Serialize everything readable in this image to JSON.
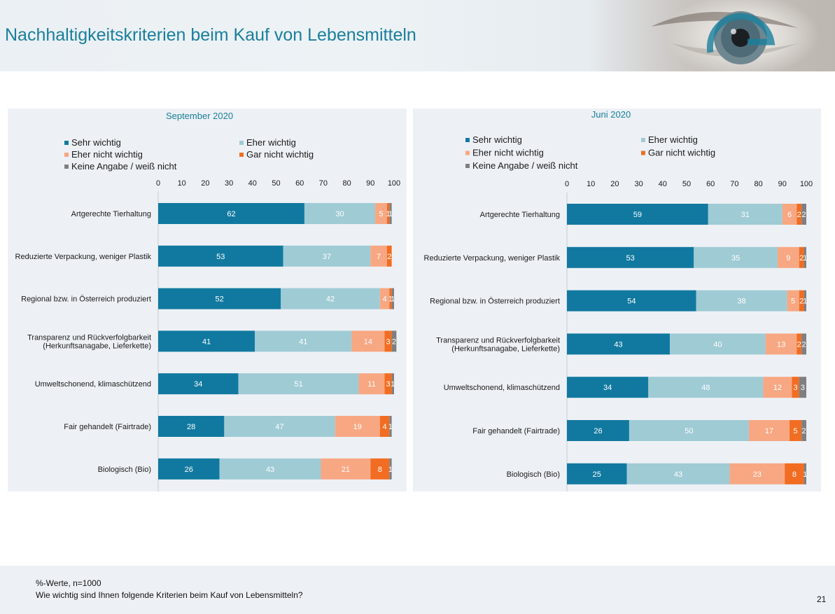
{
  "page": {
    "title": "Nachhaltigkeitskriterien beim Kauf von Lebensmitteln",
    "note_line1": "%-Werte, n=1000",
    "note_line2": "Wie wichtig sind Ihnen folgende Kriterien beim Kauf von Lebensmitteln?",
    "page_number": "21"
  },
  "colors": {
    "title": "#1a7f9c",
    "sehr_wichtig": "#1179a0",
    "eher_wichtig": "#9fcbd5",
    "eher_nicht_wichtig": "#f8a783",
    "gar_nicht_wichtig": "#f26d21",
    "keine_angabe": "#7f7f7f",
    "panel_bg": "#edf1f5"
  },
  "chart_data": [
    {
      "type": "bar",
      "orientation": "horizontal",
      "stacked": true,
      "title": "September 2020",
      "xlim": [
        0,
        100
      ],
      "xticks": [
        0,
        10,
        20,
        30,
        40,
        50,
        60,
        70,
        80,
        90,
        100
      ],
      "legend_position": "top",
      "categories": [
        "Artgerechte Tierhaltung",
        "Reduzierte Verpackung, weniger Plastik",
        "Regional bzw. in Österreich produziert",
        "Transparenz und Rückverfolgbarkeit\n(Herkunftsanagabe, Lieferkette)",
        "Umweltschonend, klimaschützend",
        "Fair gehandelt (Fairtrade)",
        "Biologisch (Bio)"
      ],
      "series": [
        {
          "name": "Sehr wichtig",
          "values": [
            62,
            53,
            52,
            41,
            34,
            28,
            26
          ]
        },
        {
          "name": "Eher wichtig",
          "values": [
            30,
            37,
            42,
            41,
            51,
            47,
            43
          ]
        },
        {
          "name": "Eher nicht wichtig",
          "values": [
            5,
            7,
            4,
            14,
            11,
            19,
            21
          ]
        },
        {
          "name": "Gar nicht wichtig",
          "values": [
            1,
            2,
            1,
            3,
            3,
            4,
            8
          ]
        },
        {
          "name": "Keine Angabe / weiß nicht",
          "values": [
            1,
            0,
            1,
            2,
            1,
            1,
            1
          ]
        }
      ]
    },
    {
      "type": "bar",
      "orientation": "horizontal",
      "stacked": true,
      "title": "Juni 2020",
      "xlim": [
        0,
        100
      ],
      "xticks": [
        0,
        10,
        20,
        30,
        40,
        50,
        60,
        70,
        80,
        90,
        100
      ],
      "legend_position": "top",
      "categories": [
        "Artgerechte Tierhaltung",
        "Reduzierte Verpackung, weniger Plastik",
        "Regional bzw. in Österreich produziert",
        "Transparenz und Rückverfolgbarkeit\n(Herkunftsanagabe, Lieferkette)",
        "Umweltschonend, klimaschützend",
        "Fair gehandelt (Fairtrade)",
        "Biologisch (Bio)"
      ],
      "series": [
        {
          "name": "Sehr wichtig",
          "values": [
            59,
            53,
            54,
            43,
            34,
            26,
            25
          ]
        },
        {
          "name": "Eher wichtig",
          "values": [
            31,
            35,
            38,
            40,
            48,
            50,
            43
          ]
        },
        {
          "name": "Eher nicht wichtig",
          "values": [
            6,
            9,
            5,
            13,
            12,
            17,
            23
          ]
        },
        {
          "name": "Gar nicht wichtig",
          "values": [
            2,
            2,
            2,
            2,
            3,
            5,
            8
          ]
        },
        {
          "name": "Keine Angabe / weiß nicht",
          "values": [
            2,
            1,
            1,
            2,
            3,
            2,
            1
          ]
        }
      ]
    }
  ]
}
